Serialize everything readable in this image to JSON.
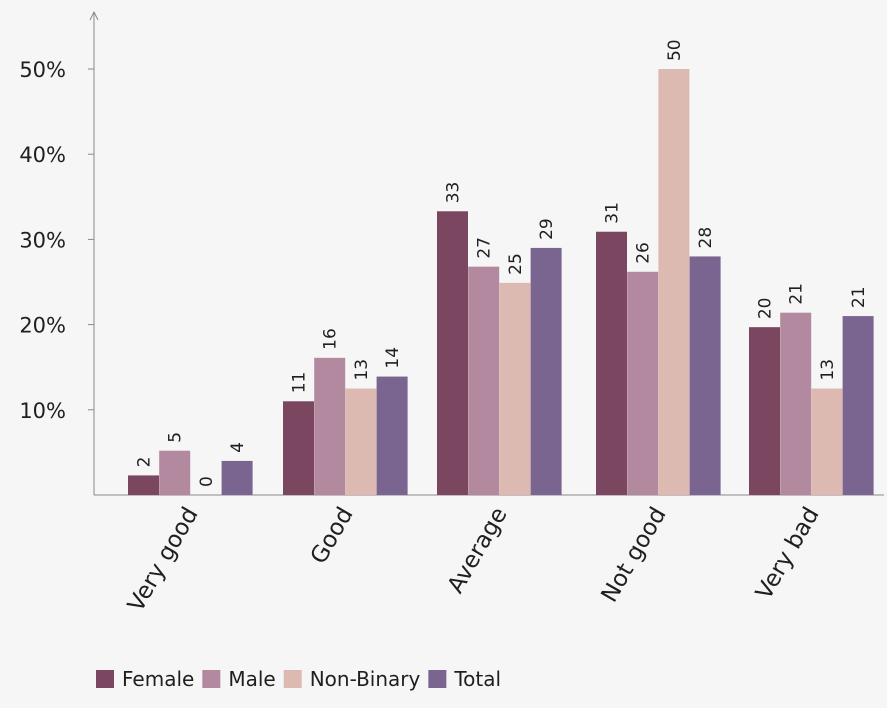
{
  "chart_data": {
    "type": "bar",
    "title": "",
    "xlabel": "",
    "ylabel": "",
    "ylim": [
      0,
      50
    ],
    "y_ticks": [
      10,
      20,
      30,
      40,
      50
    ],
    "y_tick_labels": [
      "10%",
      "20%",
      "30%",
      "40%",
      "50%"
    ],
    "categories": [
      "Very good",
      "Good",
      "Average",
      "Not good",
      "Very bad"
    ],
    "series": [
      {
        "name": "Female",
        "color": "#7b4760",
        "values": [
          2,
          11,
          33,
          31,
          20
        ],
        "plotted": [
          2.3,
          11,
          33.3,
          30.9,
          19.7
        ]
      },
      {
        "name": "Male",
        "color": "#b3899f",
        "values": [
          5,
          16,
          27,
          26,
          21
        ],
        "plotted": [
          5.2,
          16.1,
          26.8,
          26.2,
          21.4
        ]
      },
      {
        "name": "Non-Binary",
        "color": "#dcbab1",
        "values": [
          0,
          13,
          25,
          50,
          13
        ],
        "plotted": [
          0,
          12.5,
          24.9,
          50,
          12.5
        ]
      },
      {
        "name": "Total",
        "color": "#7a6590",
        "values": [
          4,
          14,
          29,
          28,
          21
        ],
        "plotted": [
          4,
          13.9,
          29,
          28,
          21
        ]
      }
    ],
    "grid": false,
    "legend_position": "bottom-left"
  }
}
